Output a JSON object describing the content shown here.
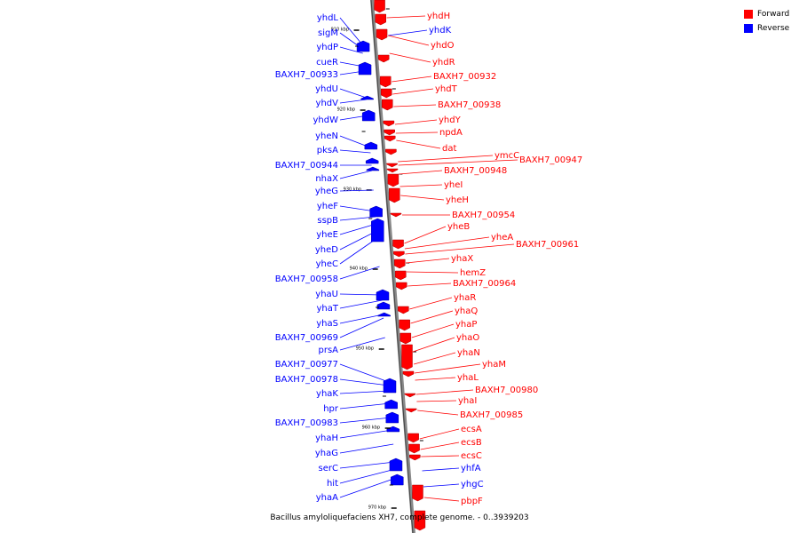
{
  "caption": "Bacillus amyloliquefaciens XH7, complete genome. - 0..3939203",
  "legend": {
    "forward_label": "Forward",
    "reverse_label": "Reverse",
    "forward_color": "#ff0000",
    "reverse_color": "#0000ff"
  },
  "ticks": [
    "910 kbp",
    "920 kbp",
    "930 kbp",
    "940 kbp",
    "950 kbp",
    "960 kbp",
    "970 kbp"
  ],
  "reverse_genes": [
    "yhdL",
    "sigM",
    "yhdP",
    "cueR",
    "BAXH7_00933",
    "yhdU",
    "yhdV",
    "yhdW",
    "yheN",
    "pksA",
    "BAXH7_00944",
    "nhaX",
    "yheG",
    "yheF",
    "sspB",
    "yheE",
    "yheD",
    "yheC",
    "BAXH7_00958",
    "yhaU",
    "yhaT",
    "yhaS",
    "BAXH7_00969",
    "prsA",
    "BAXH7_00977",
    "BAXH7_00978",
    "yhaK",
    "hpr",
    "BAXH7_00983",
    "yhaH",
    "yhaG",
    "serC",
    "hit",
    "yhaA"
  ],
  "forward_genes": [
    "yhdH",
    "yhdK",
    "yhdO",
    "yhdR",
    "BAXH7_00932",
    "yhdT",
    "BAXH7_00938",
    "yhdY",
    "npdA",
    "dat",
    "ymcC",
    "BAXH7_00947",
    "BAXH7_00948",
    "yheI",
    "yheH",
    "BAXH7_00954",
    "yheB",
    "yheA",
    "BAXH7_00961",
    "yhaX",
    "hemZ",
    "BAXH7_00964",
    "yhaR",
    "yhaQ",
    "yhaP",
    "yhaO",
    "yhaN",
    "yhaM",
    "yhaL",
    "BAXH7_00980",
    "yhaI",
    "BAXH7_00985",
    "ecsA",
    "ecsB",
    "ecsC",
    "yhfA",
    "yhgC",
    "pbpF"
  ]
}
